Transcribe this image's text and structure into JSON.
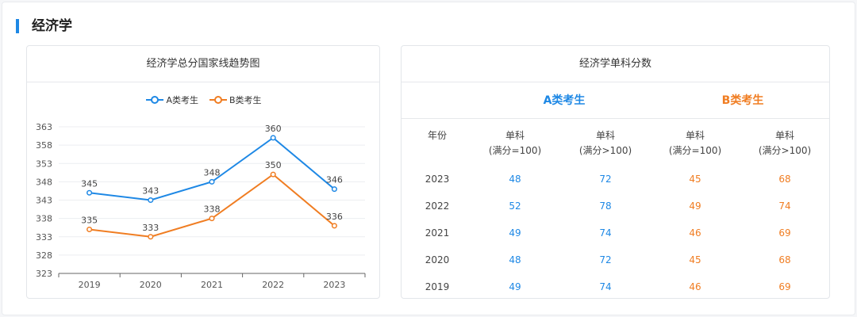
{
  "section": {
    "title": "经济学"
  },
  "chart_panel": {
    "title": "经济学总分国家线趋势图"
  },
  "table_panel": {
    "title": "经济学单科分数",
    "group_a": "A类考生",
    "group_b": "B类考生",
    "headers": {
      "year": "年份",
      "a1": [
        "单科",
        "(满分=100)"
      ],
      "a2": [
        "单科",
        "(满分>100)"
      ],
      "b1": [
        "单科",
        "(满分=100)"
      ],
      "b2": [
        "单科",
        "(满分>100)"
      ]
    },
    "rows": [
      {
        "year": "2023",
        "a1": "48",
        "a2": "72",
        "b1": "45",
        "b2": "68"
      },
      {
        "year": "2022",
        "a1": "52",
        "a2": "78",
        "b1": "49",
        "b2": "74"
      },
      {
        "year": "2021",
        "a1": "49",
        "a2": "74",
        "b1": "46",
        "b2": "69"
      },
      {
        "year": "2020",
        "a1": "48",
        "a2": "72",
        "b1": "45",
        "b2": "68"
      },
      {
        "year": "2019",
        "a1": "49",
        "a2": "74",
        "b1": "46",
        "b2": "69"
      }
    ],
    "colors": {
      "a": "#1e88e5",
      "b": "#f07d22"
    }
  },
  "chart_data": {
    "type": "line",
    "title": "经济学总分国家线趋势图",
    "categories": [
      "2019",
      "2020",
      "2021",
      "2022",
      "2023"
    ],
    "series": [
      {
        "name": "A类考生",
        "values": [
          345,
          343,
          348,
          360,
          346
        ],
        "color": "#1e88e5"
      },
      {
        "name": "B类考生",
        "values": [
          335,
          333,
          338,
          350,
          336
        ],
        "color": "#f07d22"
      }
    ],
    "yticks": [
      "323",
      "328",
      "333",
      "338",
      "343",
      "348",
      "353",
      "358",
      "363"
    ],
    "ylim": [
      323,
      363
    ],
    "xlabel": "",
    "ylabel": "",
    "grid": true,
    "legend": "top-center",
    "data_labels": true
  }
}
